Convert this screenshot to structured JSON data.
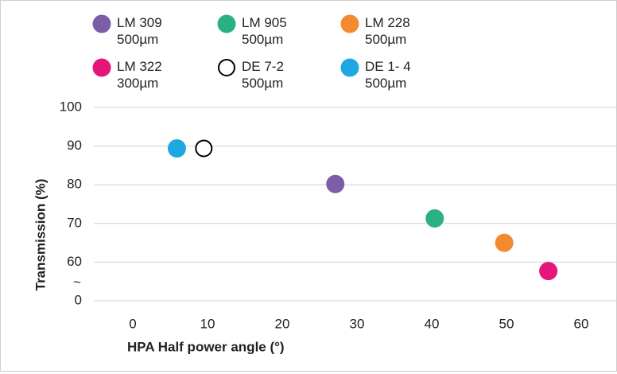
{
  "chart_data": {
    "type": "scatter",
    "x_label": "HPA Half power angle (°)",
    "y_label": "Transmission (%)",
    "xlim": [
      -5,
      65
    ],
    "xticks": [
      0,
      10,
      20,
      30,
      40,
      50,
      60
    ],
    "ylim": [
      50,
      100
    ],
    "yticks": [
      60,
      70,
      80,
      90,
      100
    ],
    "y_bottom_label": "0",
    "y_break": "~",
    "grid": true,
    "series": [
      {
        "name": "LM 309\n500µm",
        "color": "#7b5ea7",
        "x": [
          27.1
        ],
        "values": [
          80.2
        ]
      },
      {
        "name": "LM 905\n500µm",
        "color": "#2bb084",
        "x": [
          40.4
        ],
        "values": [
          71.3
        ]
      },
      {
        "name": "LM 228\n500µm",
        "color": "#f28a30",
        "x": [
          49.7
        ],
        "values": [
          65.0
        ]
      },
      {
        "name": "LM 322\n300µm",
        "color": "#e5157a",
        "x": [
          55.6
        ],
        "values": [
          57.7
        ]
      },
      {
        "name": "DE 7-2\n500µm",
        "color": "#000000",
        "marker": "open",
        "x": [
          9.5
        ],
        "values": [
          89.4
        ]
      },
      {
        "name": "DE 1- 4\n500µm",
        "color": "#1ea7e1",
        "x": [
          5.9
        ],
        "values": [
          89.4
        ]
      }
    ]
  }
}
